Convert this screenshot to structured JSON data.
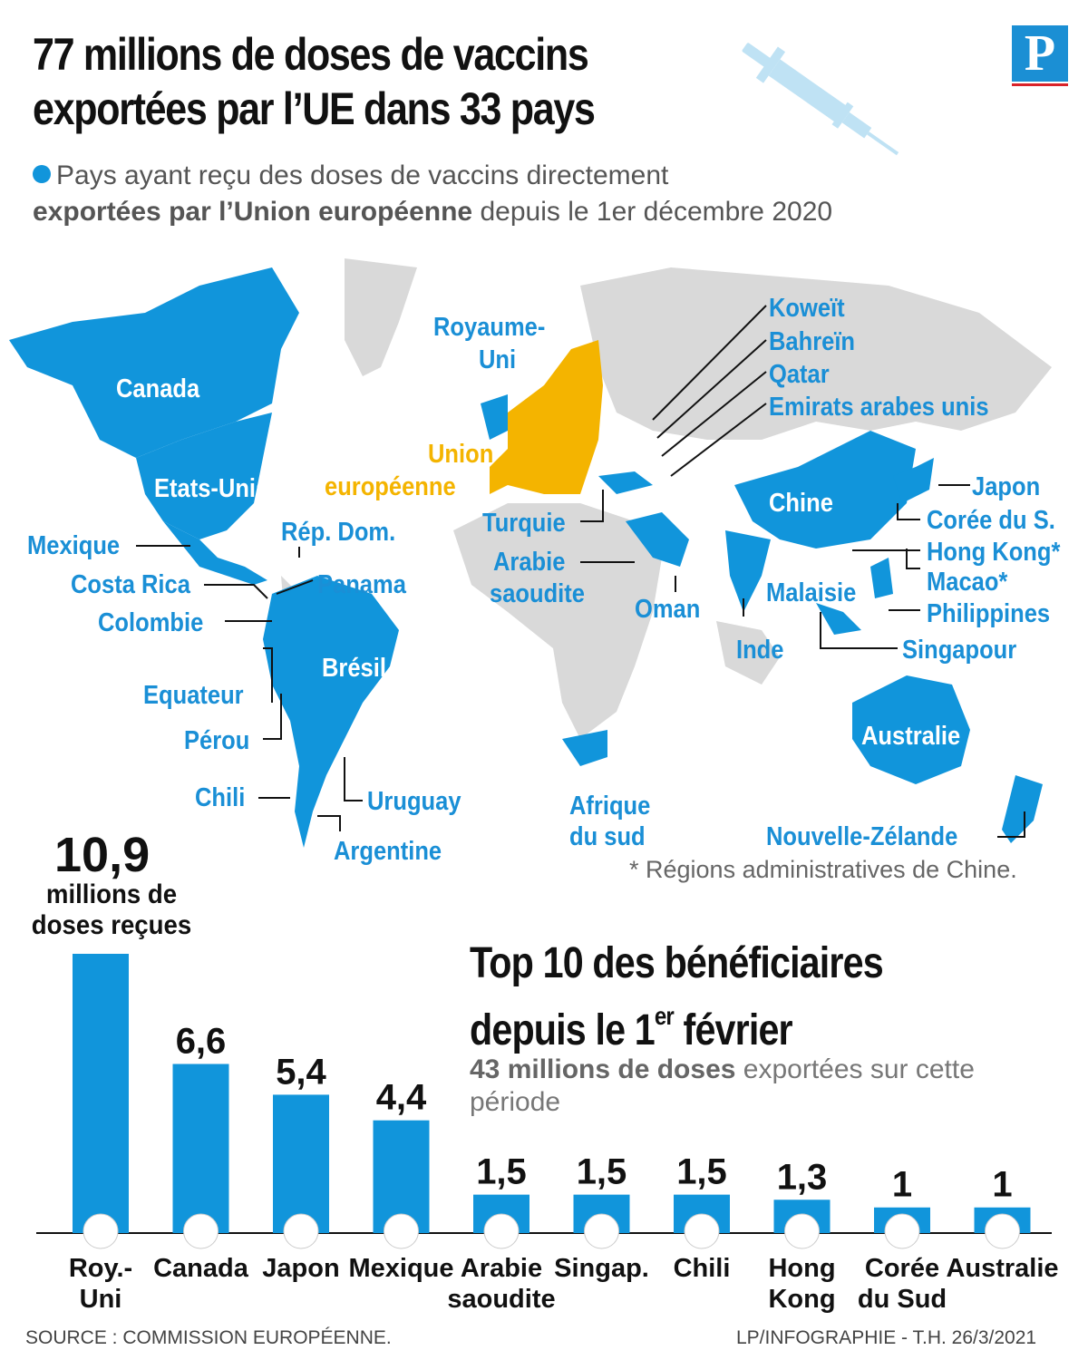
{
  "header": {
    "title": "77 millions de doses de vaccins exportées par l’UE dans 33 pays",
    "subtitle_pre": "Pays ayant reçu des doses de vaccins directement",
    "subtitle_bold": "exportées par l’Union européenne",
    "subtitle_post": "depuis le 1er décembre 2020",
    "logo": "P"
  },
  "map": {
    "labels": [
      "Canada",
      "Etats-Unis",
      "Mexique",
      "Costa Rica",
      "Colombie",
      "Rép. Dom.",
      "Panama",
      "Brésil",
      "Equateur",
      "Pérou",
      "Chili",
      "Uruguay",
      "Argentine",
      "Royaume-",
      "Uni",
      "Union",
      "européenne",
      "Turquie",
      "Arabie",
      "saoudite",
      "Oman",
      "Afrique",
      "du sud",
      "Koweït",
      "Bahreïn",
      "Qatar",
      "Emirats arabes unis",
      "Chine",
      "Japon",
      "Corée du S.",
      "Hong Kong*",
      "Macao*",
      "Malaisie",
      "Philippines",
      "Singapour",
      "Inde",
      "Australie",
      "Nouvelle-Zélande"
    ],
    "note": "* Régions administratives de Chine.",
    "colors": {
      "recipient": "#1195db",
      "eu": "#f4b400",
      "other": "#d9d9d9"
    }
  },
  "top10": {
    "title_line1": "Top 10 des bénéficiaires",
    "title_line2_pre": "depuis le 1",
    "title_line2_sup": "er",
    "title_line2_post": " février",
    "sub_bold": "43 millions de doses",
    "sub_rest": "exportées sur cette période",
    "top_value_label": "10,9",
    "top_unit_label": "millions de doses reçues"
  },
  "chart_data": {
    "type": "bar",
    "title": "Top 10 des bénéficiaires depuis le 1er février",
    "unit": "millions de doses reçues",
    "categories": [
      "Roy.- Uni",
      "Canada",
      "Japon",
      "Mexique",
      "Arabie saoudite",
      "Singap.",
      "Chili",
      "Hong Kong",
      "Corée du Sud",
      "Australie"
    ],
    "values": [
      10.9,
      6.6,
      5.4,
      4.4,
      1.5,
      1.5,
      1.5,
      1.3,
      1,
      1
    ],
    "value_labels": [
      "10,9",
      "6,6",
      "5,4",
      "4,4",
      "1,5",
      "1,5",
      "1,5",
      "1,3",
      "1",
      "1"
    ],
    "flag_icons": [
      "uk-flag-icon",
      "canada-flag-icon",
      "japan-flag-icon",
      "mexico-flag-icon",
      "saudi-flag-icon",
      "singapore-flag-icon",
      "chile-flag-icon",
      "hongkong-flag-icon",
      "southkorea-flag-icon",
      "australia-flag-icon"
    ],
    "ylim": [
      0,
      10.9
    ],
    "color": "#1195db"
  },
  "footer": {
    "source": "SOURCE : COMMISSION EUROPÉENNE.",
    "credit": "LP/INFOGRAPHIE - T.H.  26/3/2021"
  }
}
